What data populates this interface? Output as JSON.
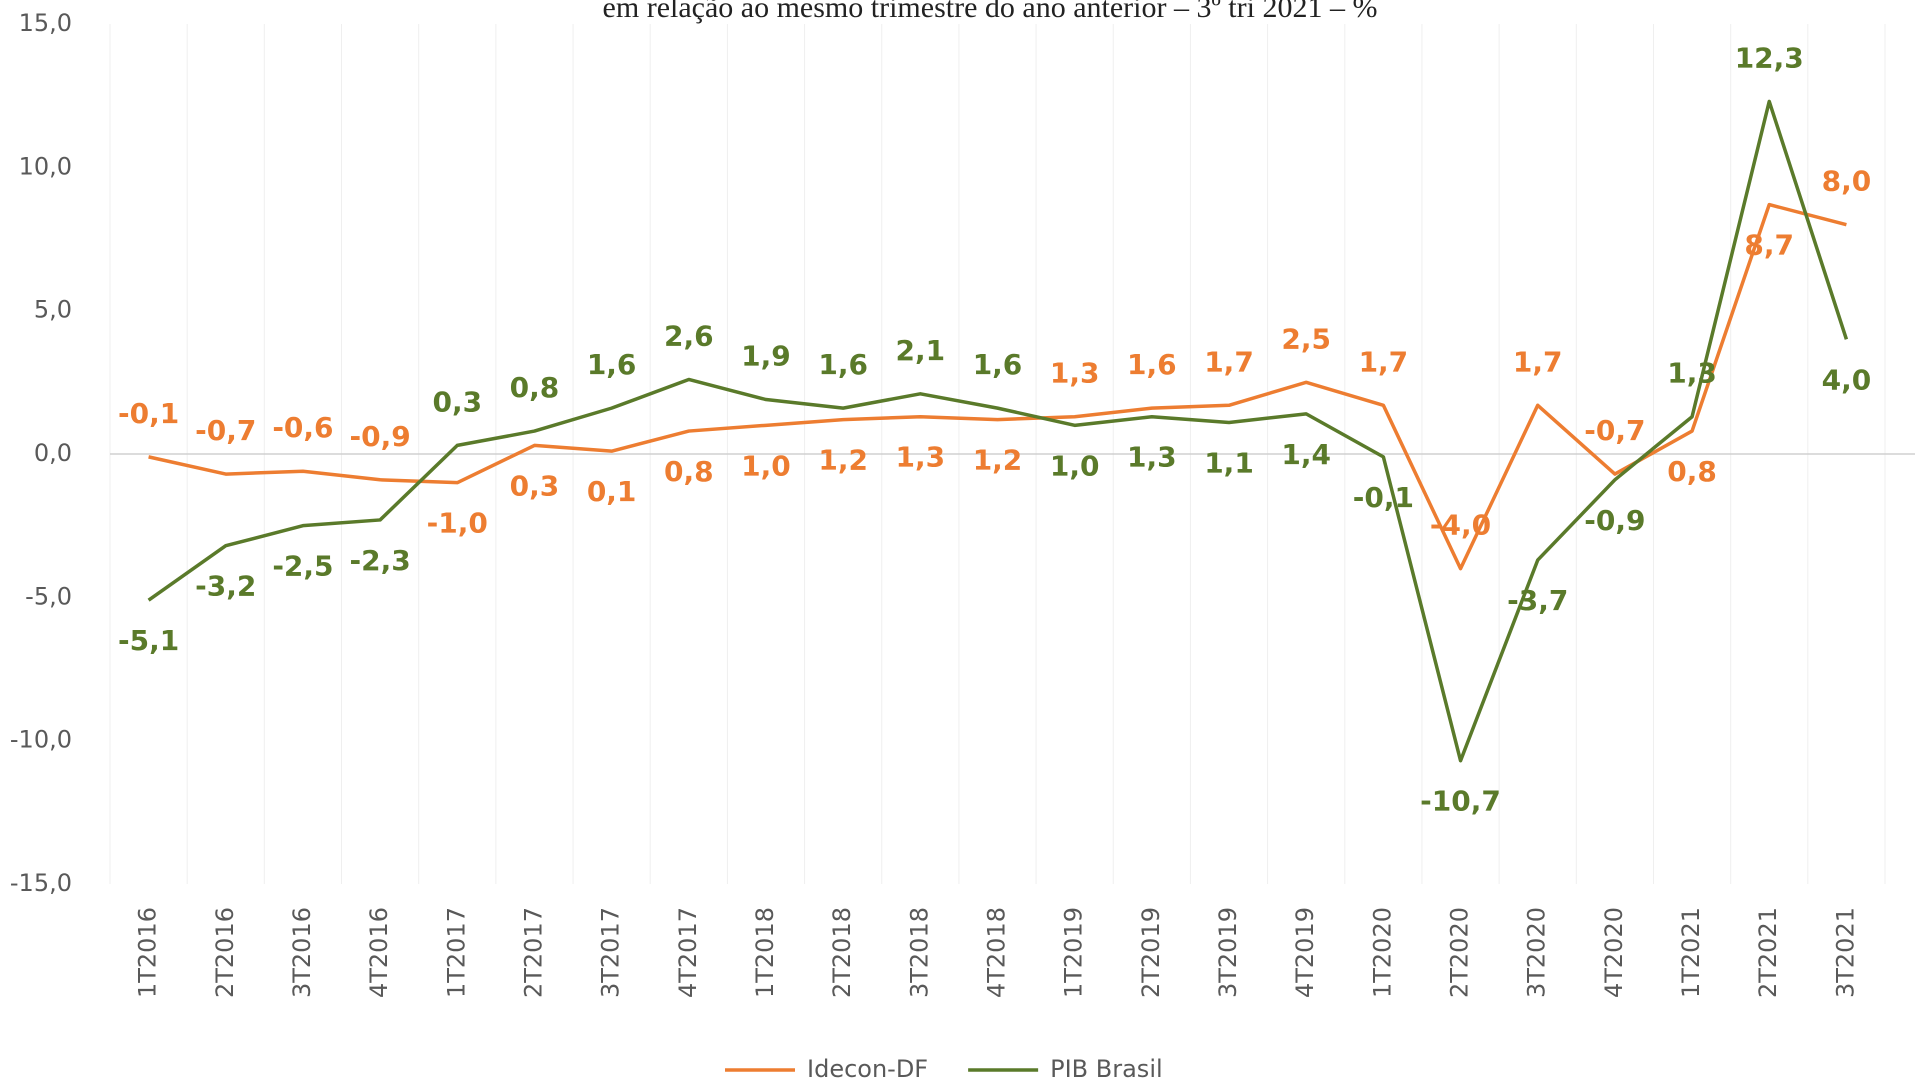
{
  "chart_data": {
    "type": "line",
    "title": "em relação ao mesmo trimestre do ano anterior – 3º tri 2021 – %",
    "categories": [
      "1T2016",
      "2T2016",
      "3T2016",
      "4T2016",
      "1T2017",
      "2T2017",
      "3T2017",
      "4T2017",
      "1T2018",
      "2T2018",
      "3T2018",
      "4T2018",
      "1T2019",
      "2T2019",
      "3T2019",
      "4T2019",
      "1T2020",
      "2T2020",
      "3T2020",
      "4T2020",
      "1T2021",
      "2T2021",
      "3T2021"
    ],
    "series": [
      {
        "name": "Idecon-DF",
        "color": "#ed7d31",
        "values": [
          -0.1,
          -0.7,
          -0.6,
          -0.9,
          -1.0,
          0.3,
          0.1,
          0.8,
          1.0,
          1.2,
          1.3,
          1.2,
          1.3,
          1.6,
          1.7,
          2.5,
          1.7,
          -4.0,
          1.7,
          -0.7,
          0.8,
          8.7,
          8.0
        ],
        "value_labels": [
          "-0,1",
          "-0,7",
          "-0,6",
          "-0,9",
          "-1,0",
          "0,3",
          "0,1",
          "0,8",
          "1,0",
          "1,2",
          "1,3",
          "1,2",
          "1,3",
          "1,6",
          "1,7",
          "2,5",
          "1,7",
          "-4,0",
          "1,7",
          "-0,7",
          "0,8",
          "8,7",
          "8,0"
        ]
      },
      {
        "name": "PIB Brasil",
        "color": "#5a7a2a",
        "values": [
          -5.1,
          -3.2,
          -2.5,
          -2.3,
          0.3,
          0.8,
          1.6,
          2.6,
          1.9,
          1.6,
          2.1,
          1.6,
          1.0,
          1.3,
          1.1,
          1.4,
          -0.1,
          -10.7,
          -3.7,
          -0.9,
          1.3,
          12.3,
          4.0
        ],
        "value_labels": [
          "-5,1",
          "-3,2",
          "-2,5",
          "-2,3",
          "0,3",
          "0,8",
          "1,6",
          "2,6",
          "1,9",
          "1,6",
          "2,1",
          "1,6",
          "1,0",
          "1,3",
          "1,1",
          "1,4",
          "-0,1",
          "-10,7",
          "-3,7",
          "-0,9",
          "1,3",
          "12,3",
          "4,0"
        ]
      }
    ],
    "ylim": [
      -15,
      15
    ],
    "yticks": [
      {
        "value": -15,
        "label": "-15,0"
      },
      {
        "value": -10,
        "label": "-10,0"
      },
      {
        "value": -5,
        "label": "-5,0"
      },
      {
        "value": 0,
        "label": "0,0"
      },
      {
        "value": 5,
        "label": "5,0"
      },
      {
        "value": 10,
        "label": "10,0"
      },
      {
        "value": 15,
        "label": "15,0"
      }
    ],
    "legend": "bottom"
  }
}
